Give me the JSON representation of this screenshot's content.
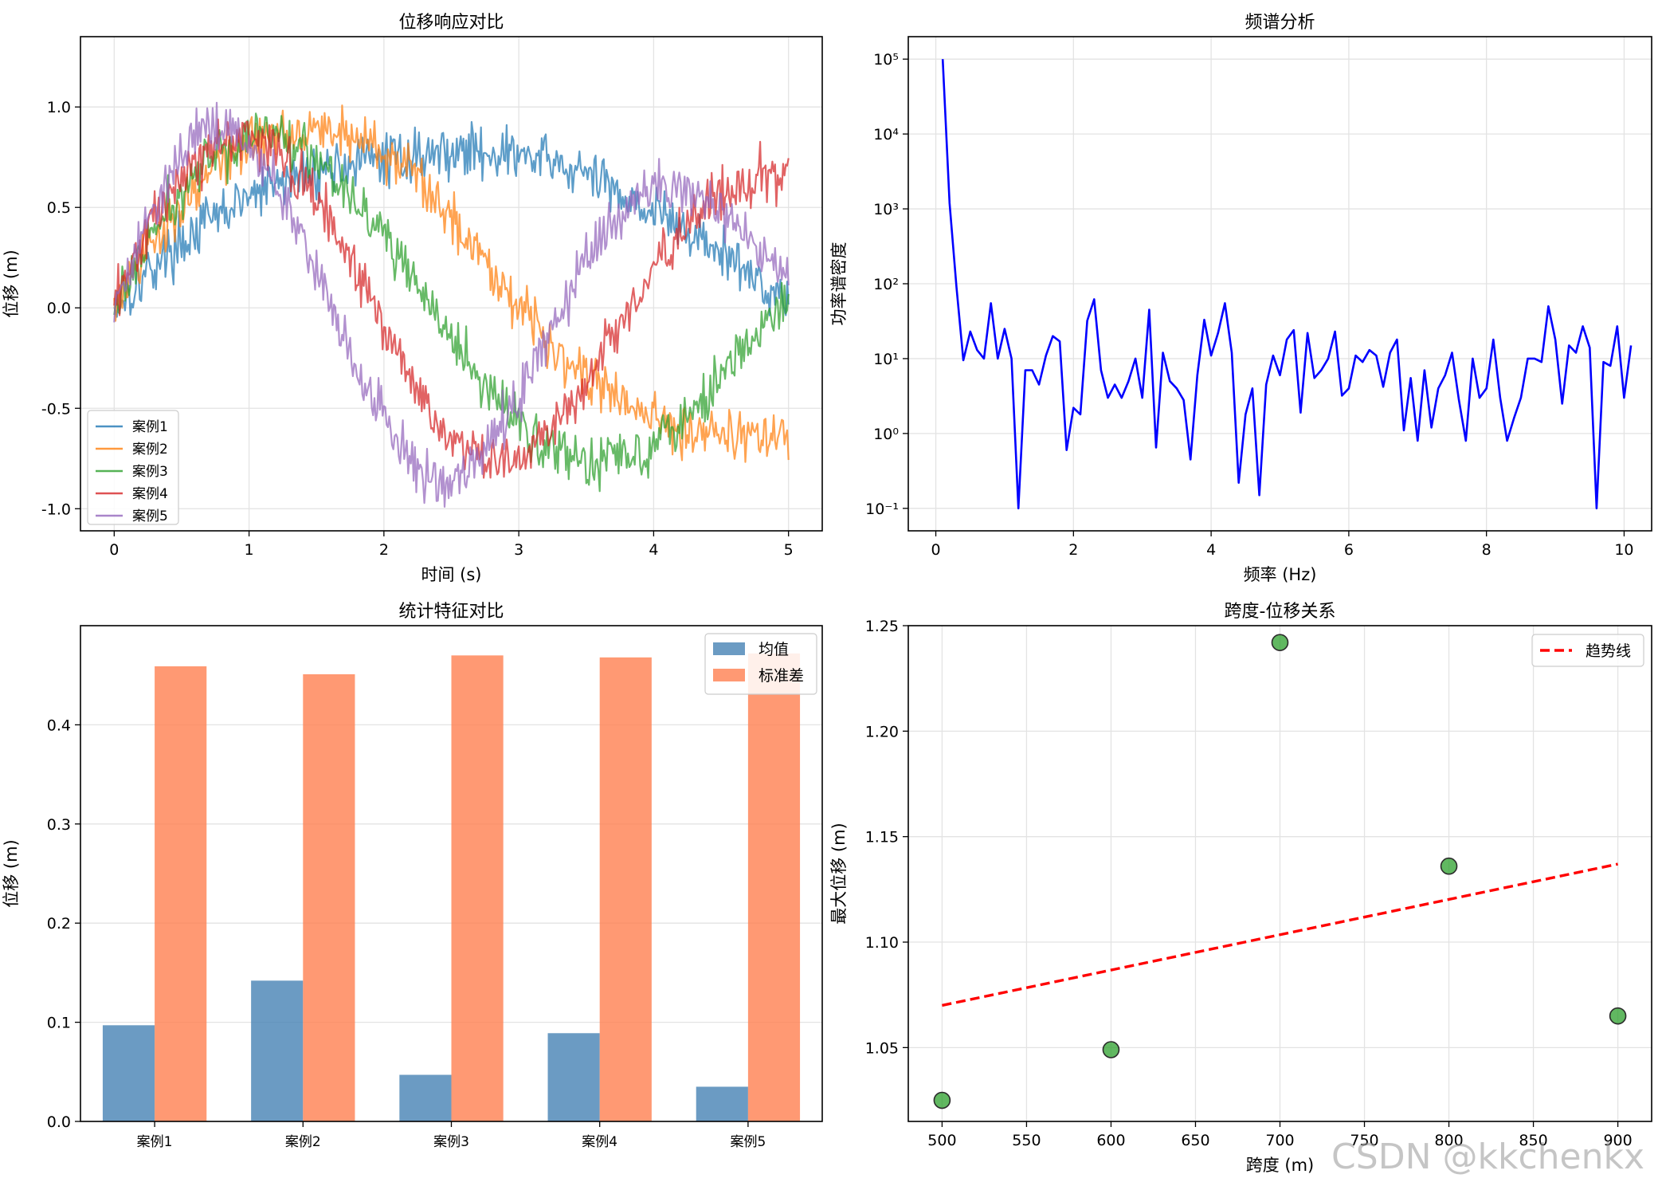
{
  "watermark": "CSDN @kkchenkx",
  "chart_data": [
    {
      "type": "line",
      "title": "位移响应对比",
      "xlabel": "时间 (s)",
      "ylabel": "位移 (m)",
      "xlim": [
        -0.25,
        5.25
      ],
      "ylim": [
        -1.11,
        1.35
      ],
      "xticks": [
        0,
        1,
        2,
        3,
        4,
        5
      ],
      "xtick_labels": [
        "0",
        "1",
        "2",
        "3",
        "4",
        "5"
      ],
      "yticks": [
        -1.0,
        -0.5,
        0.0,
        0.5,
        1.0
      ],
      "ytick_labels": [
        "-1.0",
        "-0.5",
        "0.0",
        "0.5",
        "1.0"
      ],
      "grid": true,
      "legend": "lower-left",
      "noise_amplitude": 0.13,
      "series": [
        {
          "name": "案例1",
          "color": "#1f77b4",
          "x": [
            0,
            0.25,
            0.5,
            0.75,
            1.0,
            1.25,
            1.5,
            1.75,
            2.0,
            2.25,
            2.5,
            2.75,
            3.0,
            3.25,
            3.5,
            3.75,
            4.0,
            4.25,
            4.5,
            4.75,
            5.0
          ],
          "y": [
            0.0,
            0.18,
            0.33,
            0.45,
            0.55,
            0.63,
            0.68,
            0.72,
            0.74,
            0.76,
            0.78,
            0.78,
            0.76,
            0.72,
            0.66,
            0.58,
            0.48,
            0.38,
            0.27,
            0.15,
            0.04
          ]
        },
        {
          "name": "案例2",
          "color": "#ff7f0e",
          "x": [
            0,
            0.25,
            0.5,
            0.75,
            1.0,
            1.25,
            1.5,
            1.75,
            2.0,
            2.25,
            2.5,
            2.75,
            3.0,
            3.25,
            3.5,
            3.75,
            4.0,
            4.25,
            4.5,
            4.75,
            5.0
          ],
          "y": [
            0.0,
            0.28,
            0.52,
            0.7,
            0.82,
            0.88,
            0.9,
            0.86,
            0.78,
            0.64,
            0.46,
            0.24,
            0.02,
            -0.18,
            -0.34,
            -0.46,
            -0.55,
            -0.6,
            -0.62,
            -0.64,
            -0.64
          ]
        },
        {
          "name": "案例3",
          "color": "#2ca02c",
          "x": [
            0,
            0.25,
            0.5,
            0.75,
            1.0,
            1.25,
            1.5,
            1.75,
            2.0,
            2.25,
            2.5,
            2.75,
            3.0,
            3.25,
            3.5,
            3.75,
            4.0,
            4.25,
            4.5,
            4.75,
            5.0
          ],
          "y": [
            0.0,
            0.32,
            0.58,
            0.76,
            0.86,
            0.86,
            0.76,
            0.58,
            0.36,
            0.1,
            -0.16,
            -0.4,
            -0.58,
            -0.7,
            -0.76,
            -0.74,
            -0.66,
            -0.52,
            -0.34,
            -0.14,
            0.02
          ]
        },
        {
          "name": "案例4",
          "color": "#d62728",
          "x": [
            0,
            0.25,
            0.5,
            0.75,
            1.0,
            1.25,
            1.5,
            1.75,
            2.0,
            2.25,
            2.5,
            2.75,
            3.0,
            3.25,
            3.5,
            3.75,
            4.0,
            4.25,
            4.5,
            4.75,
            5.0
          ],
          "y": [
            0.0,
            0.38,
            0.66,
            0.82,
            0.86,
            0.76,
            0.54,
            0.24,
            -0.1,
            -0.42,
            -0.64,
            -0.76,
            -0.76,
            -0.62,
            -0.38,
            -0.08,
            0.2,
            0.42,
            0.56,
            0.64,
            0.66
          ]
        },
        {
          "name": "案例5",
          "color": "#9467bd",
          "x": [
            0,
            0.25,
            0.5,
            0.75,
            1.0,
            1.25,
            1.5,
            1.75,
            2.0,
            2.25,
            2.5,
            2.75,
            3.0,
            3.25,
            3.5,
            3.75,
            4.0,
            4.25,
            4.5,
            4.75,
            5.0
          ],
          "y": [
            0.0,
            0.46,
            0.8,
            0.92,
            0.84,
            0.56,
            0.18,
            -0.22,
            -0.58,
            -0.82,
            -0.86,
            -0.72,
            -0.44,
            -0.1,
            0.24,
            0.48,
            0.6,
            0.6,
            0.48,
            0.3,
            0.12
          ]
        }
      ]
    },
    {
      "type": "line",
      "title": "频谱分析",
      "xlabel": "频率 (Hz)",
      "ylabel": "功率谱密度",
      "yscale": "log",
      "xlim": [
        -0.4,
        10.4
      ],
      "ylim_log10": [
        -1.3,
        5.3
      ],
      "xticks": [
        0,
        2,
        4,
        6,
        8,
        10
      ],
      "xtick_labels": [
        "0",
        "2",
        "4",
        "6",
        "8",
        "10"
      ],
      "ytick_exponents": [
        -1,
        0,
        1,
        2,
        3,
        4,
        5
      ],
      "ytick_labels": [
        "10⁻¹",
        "10⁰",
        "10¹",
        "10²",
        "10³",
        "10⁴",
        "10⁵"
      ],
      "grid": true,
      "color": "#0000ff",
      "x_start": 0.1,
      "x_step": 0.1,
      "values": [
        100000,
        1200,
        90,
        9.5,
        23,
        13,
        10,
        55,
        10,
        25,
        10,
        0.1,
        7,
        7,
        4.5,
        11,
        20,
        17,
        0.6,
        2.2,
        1.8,
        32,
        62,
        7,
        3,
        4.5,
        3,
        5,
        10,
        3,
        45,
        0.65,
        12,
        5,
        4,
        2.8,
        0.45,
        6,
        33,
        11,
        22,
        55,
        12,
        0.22,
        1.8,
        4,
        0.15,
        4.5,
        11,
        6,
        18,
        24,
        1.9,
        22,
        5.5,
        7,
        10,
        23,
        3.2,
        4,
        11,
        9,
        13,
        11,
        4.2,
        12,
        18,
        1.1,
        5.5,
        0.8,
        7,
        1.2,
        4,
        6,
        12,
        2.8,
        0.8,
        10,
        3,
        4,
        18,
        3,
        0.8,
        1.6,
        3,
        10,
        10,
        9,
        50,
        18,
        2.5,
        15,
        12,
        27,
        14,
        0.1,
        9,
        8,
        27,
        3,
        15
      ]
    },
    {
      "type": "bar",
      "title": "统计特征对比",
      "xlabel": "",
      "ylabel": "位移 (m)",
      "ylim": [
        0,
        0.5
      ],
      "yticks": [
        0.0,
        0.1,
        0.2,
        0.3,
        0.4
      ],
      "ytick_labels": [
        "0.0",
        "0.1",
        "0.2",
        "0.3",
        "0.4"
      ],
      "grid": true,
      "legend": "top-right",
      "categories": [
        "案例1",
        "案例2",
        "案例3",
        "案例4",
        "案例5"
      ],
      "series": [
        {
          "name": "均值",
          "color": "#4682b4",
          "values": [
            0.097,
            0.142,
            0.047,
            0.089,
            0.035
          ]
        },
        {
          "name": "标准差",
          "color": "#ff7f50",
          "values": [
            0.459,
            0.451,
            0.47,
            0.468,
            0.472
          ]
        }
      ]
    },
    {
      "type": "scatter",
      "title": "跨度-位移关系",
      "xlabel": "跨度 (m)",
      "ylabel": "最大位移 (m)",
      "xlim": [
        480,
        920
      ],
      "ylim": [
        1.015,
        1.25
      ],
      "xticks": [
        500,
        550,
        600,
        650,
        700,
        750,
        800,
        850,
        900
      ],
      "xtick_labels": [
        "500",
        "550",
        "600",
        "650",
        "700",
        "750",
        "800",
        "850",
        "900"
      ],
      "yticks": [
        1.05,
        1.1,
        1.15,
        1.2,
        1.25
      ],
      "ytick_labels": [
        "1.05",
        "1.10",
        "1.15",
        "1.20",
        "1.25"
      ],
      "grid": true,
      "legend": "top-right",
      "points": {
        "x": [
          500,
          600,
          700,
          800,
          900
        ],
        "y": [
          1.025,
          1.049,
          1.242,
          1.136,
          1.065
        ],
        "color": "#2ca02c"
      },
      "trend": {
        "name": "趋势线",
        "color": "#ff0000",
        "x": [
          500,
          900
        ],
        "y": [
          1.07,
          1.137
        ]
      }
    }
  ]
}
